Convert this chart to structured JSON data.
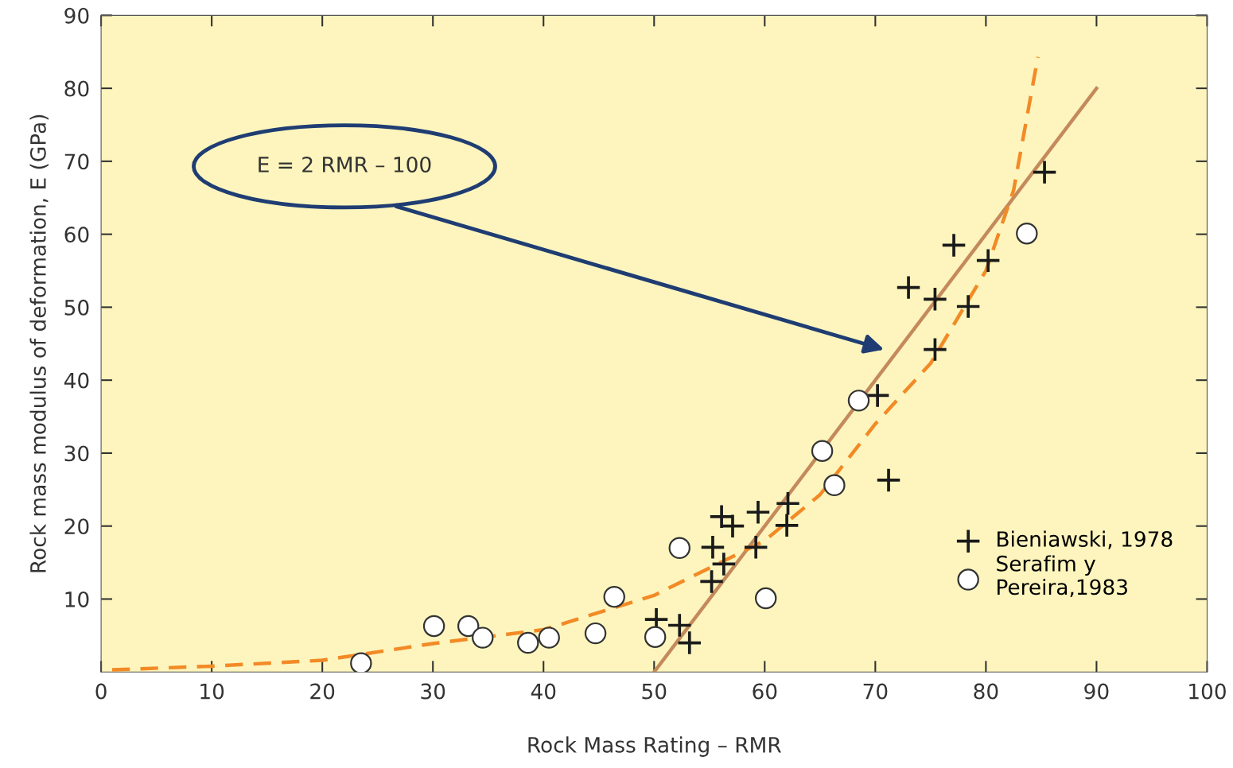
{
  "chart_data": {
    "type": "scatter",
    "xlabel": "Rock Mass Rating – RMR",
    "ylabel": "Rock mass modulus of deformation, E (GPa)",
    "xlim": [
      0,
      100
    ],
    "ylim": [
      0,
      90
    ],
    "xticks": [
      0,
      10,
      20,
      30,
      40,
      50,
      60,
      70,
      80,
      90,
      100
    ],
    "yticks": [
      10,
      20,
      30,
      40,
      50,
      60,
      70,
      80,
      90
    ],
    "grid": false,
    "legend": "lower right",
    "annotations": [
      "E = 2 RMR – 100"
    ],
    "series": [
      {
        "name": "Bieniawski, 1978",
        "marker": "cross",
        "color": "#1a1a1a",
        "x": [
          85.3,
          77.1,
          80.2,
          73.0,
          75.4,
          78.4,
          75.4,
          70.2,
          71.2,
          62.1,
          59.4,
          56.1,
          57.1,
          62.0,
          55.3,
          59.2,
          56.3,
          55.2,
          50.2,
          52.3,
          53.2
        ],
        "values": [
          68.5,
          58.5,
          56.4,
          52.7,
          51.1,
          50.1,
          44.2,
          37.9,
          26.3,
          23.1,
          21.9,
          21.3,
          20.0,
          20.1,
          17.1,
          17.1,
          14.8,
          12.4,
          7.2,
          6.4,
          4.0
        ]
      },
      {
        "name": "Serafim y\nPereira,1983",
        "marker": "circle",
        "color": "#ffffff",
        "x": [
          23.5,
          30.1,
          33.2,
          34.5,
          38.6,
          40.5,
          44.7,
          46.4,
          50.1,
          52.3,
          60.1,
          65.2,
          66.3,
          68.5,
          83.7
        ],
        "values": [
          1.2,
          6.3,
          6.3,
          4.7,
          4.0,
          4.7,
          5.3,
          10.3,
          4.8,
          17.0,
          10.1,
          30.3,
          25.6,
          37.2,
          60.1
        ]
      },
      {
        "type": "line",
        "line_style": "solid",
        "color": "#c48a5c",
        "x": [
          50,
          90
        ],
        "values": [
          0,
          80
        ]
      },
      {
        "type": "line",
        "line_style": "dashed",
        "color": "#f28a26",
        "x": [
          1,
          10,
          20,
          30,
          40,
          50,
          60,
          65,
          70,
          75,
          80,
          82.5,
          84.7
        ],
        "values": [
          0.3,
          0.8,
          1.6,
          3.9,
          5.8,
          10.5,
          18,
          24.3,
          34,
          42.3,
          55,
          66,
          84.3
        ]
      }
    ]
  }
}
